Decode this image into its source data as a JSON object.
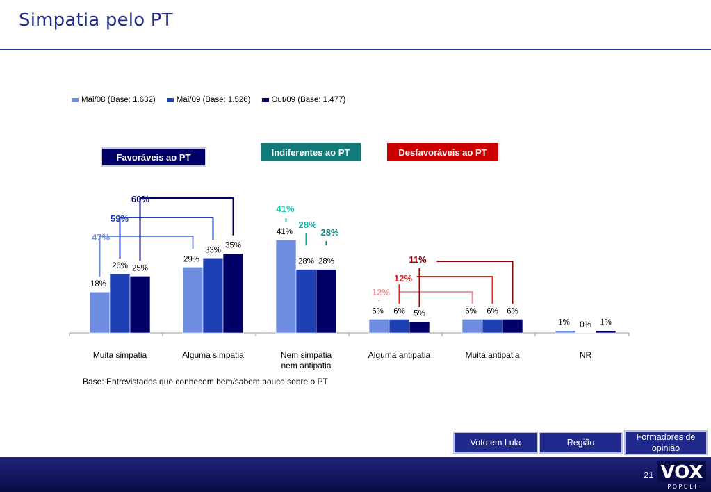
{
  "header": {
    "title": "Simpatia pelo PT"
  },
  "legend": [
    {
      "label": "Mai/08 (Base: 1.632)",
      "color": "#6f8de0"
    },
    {
      "label": "Mai/09 (Base: 1.526)",
      "color": "#1f3fb5"
    },
    {
      "label": "Out/09 (Base: 1.477)",
      "color": "#000066"
    }
  ],
  "groups": {
    "favoraveis": "Favoráveis ao PT",
    "indiferentes": "Indiferentes ao PT",
    "desfavoraveis": "Desfavoráveis ao PT"
  },
  "chart_data": {
    "type": "bar",
    "categories": [
      "Muita simpatia",
      "Alguma simpatia",
      "Nem simpatia nem antipatia",
      "Alguma antipatia",
      "Muita antipatia",
      "NR"
    ],
    "category_lines": [
      [
        "Muita simpatia"
      ],
      [
        "Alguma simpatia"
      ],
      [
        "Nem simpatia",
        "nem antipatia"
      ],
      [
        "Alguma antipatia"
      ],
      [
        "Muita antipatia"
      ],
      [
        "NR"
      ]
    ],
    "series": [
      {
        "name": "Mai/08 (Base: 1.632)",
        "color": "#6f8de0",
        "values": [
          18,
          29,
          41,
          6,
          6,
          1
        ]
      },
      {
        "name": "Mai/09 (Base: 1.526)",
        "color": "#1f3fb5",
        "values": [
          26,
          33,
          28,
          6,
          6,
          0
        ]
      },
      {
        "name": "Out/09 (Base: 1.477)",
        "color": "#000066",
        "values": [
          25,
          35,
          28,
          5,
          6,
          1
        ]
      }
    ],
    "unit": "%",
    "ylim": [
      0,
      45
    ],
    "grid": false,
    "legend_position": "top",
    "group_totals": {
      "favoraveis": [
        47,
        59,
        60
      ],
      "indiferentes": [
        41,
        28,
        28
      ],
      "desfavoraveis": [
        12,
        12,
        11
      ]
    },
    "group_total_colors": {
      "favoraveis": [
        "#6f8de0",
        "#1f3fb5",
        "#000066"
      ],
      "indiferentes": [
        "#22c9b0",
        "#1aa89c",
        "#127a78"
      ],
      "desfavoraveis": [
        "#f09aa0",
        "#e0242a",
        "#990000"
      ]
    }
  },
  "note": "Base: Entrevistados que conhecem bem/sabem pouco sobre o PT",
  "nav": {
    "voto": "Voto em Lula",
    "regiao": "Região",
    "formadores": "Formadores de opinião"
  },
  "footer": {
    "page": "21",
    "logo_main": "VOX",
    "logo_sub": "P O P U L I"
  }
}
